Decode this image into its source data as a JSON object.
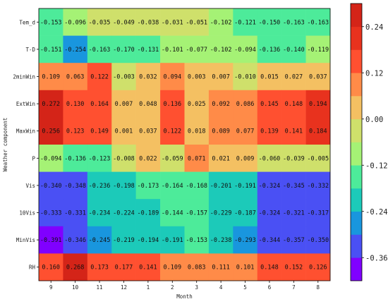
{
  "chart_data": {
    "type": "heatmap",
    "xlabel": "Month",
    "ylabel": "Weather component",
    "x": [
      "9",
      "10",
      "11",
      "12",
      "1",
      "2",
      "3",
      "4",
      "5",
      "6",
      "7",
      "8"
    ],
    "y": [
      "Tem_d",
      "T-D",
      "2minWin",
      "ExtWin",
      "MaxWin",
      "P",
      "Vis",
      "10Vis",
      "MinVis",
      "RH"
    ],
    "values": [
      [
        -0.153,
        -0.096,
        -0.035,
        -0.049,
        -0.038,
        -0.031,
        -0.051,
        -0.102,
        -0.121,
        -0.15,
        -0.163,
        -0.163
      ],
      [
        -0.151,
        -0.254,
        -0.163,
        -0.17,
        -0.131,
        -0.101,
        -0.077,
        -0.102,
        -0.094,
        -0.136,
        -0.14,
        -0.119
      ],
      [
        0.109,
        0.063,
        0.122,
        -0.003,
        0.032,
        0.094,
        0.003,
        0.007,
        -0.01,
        0.015,
        0.027,
        0.037
      ],
      [
        0.272,
        0.13,
        0.164,
        0.007,
        0.048,
        0.136,
        0.025,
        0.092,
        0.086,
        0.145,
        0.148,
        0.194
      ],
      [
        0.256,
        0.123,
        0.149,
        0.001,
        0.037,
        0.122,
        0.018,
        0.089,
        0.077,
        0.139,
        0.141,
        0.184
      ],
      [
        -0.094,
        -0.136,
        -0.123,
        -0.008,
        0.022,
        -0.059,
        0.071,
        0.021,
        0.009,
        -0.06,
        -0.039,
        -0.005
      ],
      [
        -0.34,
        -0.348,
        -0.236,
        -0.198,
        -0.173,
        -0.164,
        -0.168,
        -0.201,
        -0.191,
        -0.324,
        -0.345,
        -0.332
      ],
      [
        -0.333,
        -0.331,
        -0.234,
        -0.224,
        -0.189,
        -0.144,
        -0.157,
        -0.229,
        -0.187,
        -0.324,
        -0.321,
        -0.317
      ],
      [
        -0.391,
        -0.346,
        -0.245,
        -0.219,
        -0.194,
        -0.191,
        -0.153,
        -0.238,
        -0.293,
        -0.344,
        -0.357,
        -0.35
      ],
      [
        0.16,
        0.268,
        0.173,
        0.177,
        0.141,
        0.109,
        0.083,
        0.111,
        0.101,
        0.148,
        0.152,
        0.126
      ]
    ],
    "colorbar": {
      "ticks": [
        "0.24",
        "0.12",
        "0.00",
        "-0.12",
        "-0.24",
        "-0.36"
      ],
      "tick_values": [
        0.24,
        0.12,
        0.0,
        -0.12,
        -0.24,
        -0.36
      ],
      "range": [
        -0.42,
        0.3
      ],
      "step": 0.06,
      "colors": [
        "#8000ff",
        "#4a50f4",
        "#1996de",
        "#1ccab9",
        "#4deb9a",
        "#a5f275",
        "#cfe06b",
        "#f4c062",
        "#ff8b48",
        "#ff5030",
        "#e8321e",
        "#d42418"
      ]
    },
    "grid": false,
    "legend": "colorbar-right"
  }
}
